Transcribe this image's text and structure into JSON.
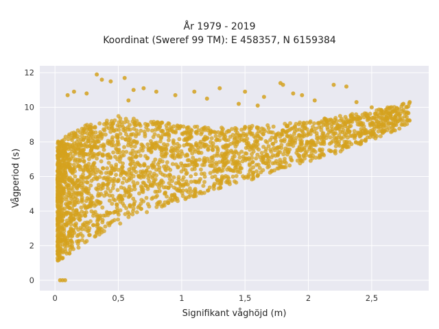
{
  "chart_data": {
    "type": "scatter",
    "title_line1": "År 1979 - 2019",
    "title_line2": "Koordinat (Sweref 99 TM): E 458357, N 6159384",
    "xlabel": "Signifikant våghöjd (m)",
    "ylabel": "Vågperiod (s)",
    "xlim": [
      -0.12,
      2.95
    ],
    "ylim": [
      -0.6,
      12.4
    ],
    "x_ticks": [
      0,
      0.5,
      1,
      1.5,
      2,
      2.5
    ],
    "x_tick_labels": [
      "0",
      "0,5",
      "1",
      "1,5",
      "2",
      "2,5"
    ],
    "y_ticks": [
      0,
      2,
      4,
      6,
      8,
      10,
      12
    ],
    "y_tick_labels": [
      "0",
      "2",
      "4",
      "6",
      "8",
      "10",
      "12"
    ],
    "grid": true,
    "point_color": "#D4A11E",
    "background_color": "#E9E9F1",
    "envelope": {
      "description_points_hs_tp": "dense cloud bounded by these approximate lower and upper limits",
      "lower_boundary": [
        [
          0.02,
          1.1
        ],
        [
          0.1,
          1.4
        ],
        [
          0.25,
          2.2
        ],
        [
          0.5,
          3.2
        ],
        [
          0.75,
          4.0
        ],
        [
          1.0,
          4.6
        ],
        [
          1.25,
          5.2
        ],
        [
          1.5,
          5.7
        ],
        [
          1.75,
          6.3
        ],
        [
          2.0,
          6.8
        ],
        [
          2.25,
          7.4
        ],
        [
          2.5,
          8.1
        ],
        [
          2.8,
          9.0
        ]
      ],
      "upper_boundary": [
        [
          0.02,
          8.0
        ],
        [
          0.1,
          8.4
        ],
        [
          0.25,
          9.0
        ],
        [
          0.5,
          9.5
        ],
        [
          0.75,
          9.2
        ],
        [
          1.0,
          9.0
        ],
        [
          1.25,
          8.8
        ],
        [
          1.5,
          8.9
        ],
        [
          1.75,
          9.0
        ],
        [
          2.0,
          9.2
        ],
        [
          2.25,
          9.5
        ],
        [
          2.5,
          9.8
        ],
        [
          2.8,
          10.3
        ]
      ]
    },
    "outliers": [
      [
        0.33,
        11.9
      ],
      [
        0.37,
        11.6
      ],
      [
        0.44,
        11.5
      ],
      [
        0.55,
        11.7
      ],
      [
        0.62,
        11.0
      ],
      [
        0.7,
        11.1
      ],
      [
        0.8,
        10.9
      ],
      [
        0.95,
        10.7
      ],
      [
        1.1,
        10.9
      ],
      [
        1.2,
        10.5
      ],
      [
        1.3,
        11.1
      ],
      [
        1.5,
        10.9
      ],
      [
        1.65,
        10.6
      ],
      [
        1.78,
        11.4
      ],
      [
        1.8,
        11.3
      ],
      [
        1.88,
        10.8
      ],
      [
        1.95,
        10.7
      ],
      [
        2.05,
        10.4
      ],
      [
        2.2,
        11.3
      ],
      [
        2.3,
        11.2
      ],
      [
        2.38,
        10.3
      ],
      [
        2.5,
        10.0
      ],
      [
        2.75,
        10.2
      ],
      [
        2.8,
        10.3
      ],
      [
        0.1,
        10.7
      ],
      [
        0.15,
        10.9
      ],
      [
        0.25,
        10.8
      ],
      [
        0.58,
        10.4
      ],
      [
        1.45,
        10.2
      ],
      [
        1.6,
        10.1
      ],
      [
        0.04,
        0.0
      ],
      [
        0.06,
        0.0
      ],
      [
        0.08,
        0.0
      ]
    ]
  }
}
